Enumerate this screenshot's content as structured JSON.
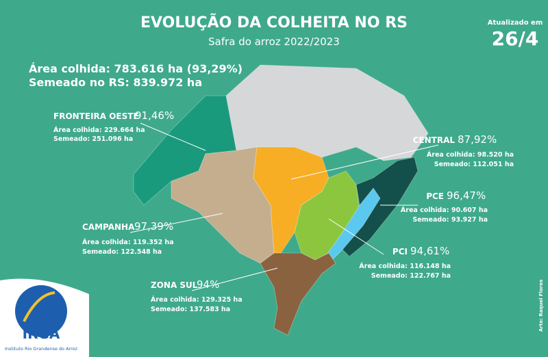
{
  "header": {
    "title": "EVOLUÇÃO DA COLHEITA NO RS",
    "subtitle": "Safra do arroz 2022/2023",
    "updated_label": "Atualizado em",
    "updated_date": "26/4"
  },
  "totals": {
    "harvested": "Área colhida: 783.616 ha (93,29%)",
    "sown": "Semeado no RS: 839.972 ha"
  },
  "regions": [
    {
      "name": "FRONTEIRA OESTE",
      "percent": "91,46%",
      "harvested": "Área colhida: 229.664 ha",
      "sown": "Semeado: 251.096 ha"
    },
    {
      "name": "CENTRAL",
      "percent": "87,92%",
      "harvested": "Área colhida: 98.520 ha",
      "sown": "Semeado: 112.051 ha"
    },
    {
      "name": "PCE",
      "percent": "96,47%",
      "harvested": "Área colhida: 90.607 ha",
      "sown": "Semeado: 93.927 ha"
    },
    {
      "name": "CAMPANHA",
      "percent": "97,39%",
      "harvested": "Área colhida: 119.352 ha",
      "sown": "Semeado: 122.548 ha"
    },
    {
      "name": "PCI",
      "percent": "94,61%",
      "harvested": "Área colhida: 116.148 ha",
      "sown": "Semeado: 122.767 ha"
    },
    {
      "name": "ZONA SUL",
      "percent": "94%",
      "harvested": "Área colhida: 129.325 ha",
      "sown": "Semeado: 137.583 ha"
    }
  ],
  "logo": {
    "acronym": "IRGA",
    "name": "Instituto Rio Grandense do Arroz"
  },
  "credit": "Arte: Raquel Flores"
}
